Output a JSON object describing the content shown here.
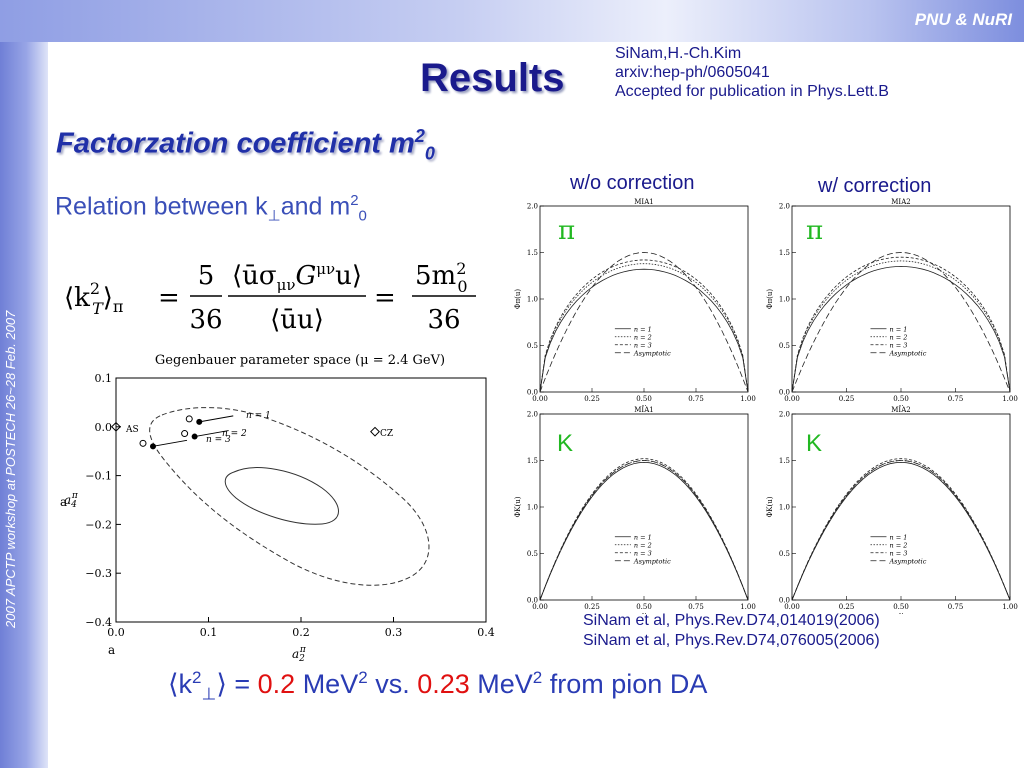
{
  "header": {
    "brand": "PNU & NuRI"
  },
  "sidebar": {
    "event": "2007 APCTP workshop at POSTECH  26~28 Feb. 2007"
  },
  "title": "Results",
  "credits": [
    "SiNam,H.-Ch.Kim",
    "arxiv:hep-ph/0605041",
    "Accepted for publication in Phys.Lett.B"
  ],
  "subtitle": {
    "text": "Factorzation coefficient m",
    "sup": "2",
    "sub": "0"
  },
  "relation": {
    "text_a": "Relation between k",
    "sub_a": "⊥",
    "text_b": "and m",
    "sup_b": "2",
    "sub_b": "0"
  },
  "formula": {
    "lhs": "⟨k",
    "lhs_sub": "T",
    "lhs_sup": "2",
    "lhs_tail": "⟩",
    "lhs_pi": "π",
    "eq": "=",
    "frac1_num": "5",
    "frac1_den": "36",
    "frac2_num": "⟨ūσ",
    "frac2_num_sub": "μν",
    "frac2_num_g": "G",
    "frac2_num_gsup": "μν",
    "frac2_num_tail": "u⟩",
    "frac2_den": "⟨ūu⟩",
    "frac3_num": "5m",
    "frac3_num_sup": "2",
    "frac3_num_sub": "0",
    "frac3_den": "36"
  },
  "gegen_chart": {
    "title": "Gegenbauer parameter space (μ = 2.4 GeV)",
    "xlabel": "a",
    "xlabel_sub": "2",
    "xlabel_sup": "π",
    "ylabel": "a",
    "ylabel_sub": "4",
    "ylabel_sup": "π",
    "xticks": [
      "0.0",
      "0.1",
      "0.2",
      "0.3",
      "0.4"
    ],
    "yticks": [
      "0.1",
      "0.0",
      "−0.1",
      "−0.2",
      "−0.3",
      "−0.4"
    ],
    "as_label": "AS",
    "cz_label": "CZ",
    "n1": "n = 1",
    "n2": "n = 2",
    "n3": "n = 3"
  },
  "chart_data": [
    {
      "type": "scatter",
      "title": "Gegenbauer parameter space (μ = 2.4 GeV)",
      "xlabel": "a2π",
      "ylabel": "a4π",
      "xlim": [
        0.0,
        0.4
      ],
      "ylim": [
        -0.4,
        0.1
      ],
      "points": [
        {
          "label": "AS",
          "x": 0.0,
          "y": 0.0
        },
        {
          "label": "CZ",
          "x": 0.28,
          "y": -0.01
        },
        {
          "label": "n = 1",
          "x": 0.09,
          "y": 0.01
        },
        {
          "label": "n = 2",
          "x": 0.085,
          "y": -0.02
        },
        {
          "label": "n = 3",
          "x": 0.04,
          "y": -0.04
        }
      ]
    },
    {
      "type": "line",
      "panels": [
        {
          "panel_title": "MIA1",
          "heading": "w/o correction",
          "meson": "π",
          "ylabel": "Φπ(u)"
        },
        {
          "panel_title": "MIA2",
          "heading": "w/ correction",
          "meson": "π",
          "ylabel": "Φπ(u)"
        },
        {
          "panel_title": "MIA1",
          "meson": "K",
          "ylabel": "ΦK(u)"
        },
        {
          "panel_title": "MIA2",
          "meson": "K",
          "ylabel": "ΦK(u)"
        }
      ],
      "xlabel": "u",
      "xlim": [
        0.0,
        1.0
      ],
      "ylim": [
        0.0,
        2.0
      ],
      "xticks": [
        "0.00",
        "0.25",
        "0.50",
        "0.75",
        "1.00"
      ],
      "yticks": [
        "0.0",
        "0.5",
        "1.0",
        "1.5",
        "2.0"
      ],
      "legend": [
        "n = 1",
        "n = 2",
        "n = 3",
        "Asymptotic"
      ],
      "series": [
        {
          "name": "Asymptotic",
          "peak": 1.5
        },
        {
          "name": "n = 1",
          "peak": 1.32
        },
        {
          "name": "n = 2",
          "peak": 1.38
        },
        {
          "name": "n = 3",
          "peak": 1.42
        }
      ]
    }
  ],
  "plots": {
    "heading_left": "w/o correction",
    "heading_right": "w/ correction",
    "pi_symbol": "π",
    "k_symbol": "K"
  },
  "refs": [
    "SiNam et al, Phys.Rev.D74,014019(2006)",
    "SiNam et al, Phys.Rev.D74,076005(2006)"
  ],
  "bottom": {
    "open": "⟨k",
    "sup": "2",
    "sub": "⊥",
    "close": "⟩ = ",
    "v1": "0.2",
    "unit1": " MeV",
    "unit1_sup": "2",
    "vs": " vs. ",
    "v2": "0.23",
    "unit2": " MeV",
    "unit2_sup": "2",
    "tail": " from pion DA"
  },
  "colors": {
    "accent": "#1a1a8c",
    "red": "#e01010",
    "green": "#22b822"
  }
}
